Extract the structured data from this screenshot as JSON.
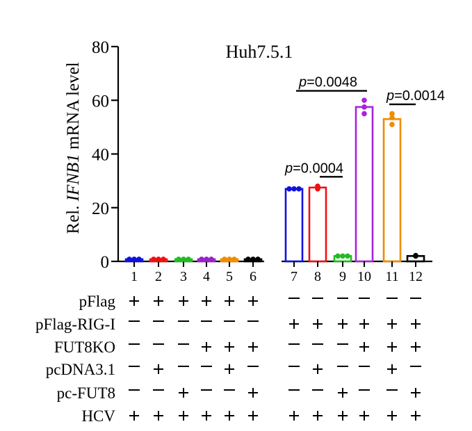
{
  "chart_data": {
    "type": "bar",
    "title": "Huh7.5.1",
    "ylabel_parts": [
      "Rel. ",
      "IFNB1",
      " mRNA  level"
    ],
    "ylim": [
      0,
      80
    ],
    "yticks": [
      0,
      20,
      40,
      60,
      80
    ],
    "categories": [
      "1",
      "2",
      "3",
      "4",
      "5",
      "6",
      "7",
      "8",
      "9",
      "10",
      "11",
      "12"
    ],
    "values": [
      0.8,
      0.8,
      0.8,
      0.8,
      0.8,
      0.8,
      27,
      27.5,
      2,
      57.5,
      53,
      2
    ],
    "points": [
      [
        0.8,
        0.8,
        0.8
      ],
      [
        0.8,
        0.8,
        0.8
      ],
      [
        0.8,
        0.8,
        0.8
      ],
      [
        0.8,
        0.8,
        0.8
      ],
      [
        0.8,
        0.8,
        0.8
      ],
      [
        0.8,
        0.8,
        0.8
      ],
      [
        27,
        27,
        27
      ],
      [
        27,
        28,
        27.5
      ],
      [
        2,
        2,
        2
      ],
      [
        55,
        57.5,
        60
      ],
      [
        51,
        53.5,
        55
      ],
      [
        2,
        2.2,
        2
      ]
    ],
    "colors": [
      "#1111dd",
      "#ee1111",
      "#22bb22",
      "#9922cc",
      "#f08c00",
      "#000000",
      "#1111dd",
      "#ee1111",
      "#22bb22",
      "#aa22dd",
      "#f08c00",
      "#000000"
    ],
    "significance": [
      {
        "from": "8",
        "to": "9",
        "p_prefix": "p",
        "p_value": "=0.0004",
        "y": 31.5
      },
      {
        "from": "7",
        "to": "10",
        "p_prefix": "p",
        "p_value": "=0.0048",
        "y": 63.5
      },
      {
        "from": "11",
        "to": "12",
        "p_prefix": "p",
        "p_value": "=0.0014",
        "y": 58.5
      }
    ],
    "conditions": [
      {
        "label": "pFlag",
        "marks": [
          "+",
          "+",
          "+",
          "+",
          "+",
          "+",
          "–",
          "–",
          "–",
          "–",
          "–",
          "–"
        ]
      },
      {
        "label": "pFlag-RIG-I",
        "marks": [
          "–",
          "–",
          "–",
          "–",
          "–",
          "–",
          "+",
          "+",
          "+",
          "+",
          "+",
          "+"
        ]
      },
      {
        "label": "FUT8KO",
        "marks": [
          "–",
          "–",
          "–",
          "+",
          "+",
          "+",
          "–",
          "–",
          "–",
          "+",
          "+",
          "+"
        ]
      },
      {
        "label": "pcDNA3.1",
        "marks": [
          "–",
          "+",
          "–",
          "–",
          "+",
          "–",
          "–",
          "+",
          "–",
          "–",
          "+",
          "–"
        ]
      },
      {
        "label": "pc-FUT8",
        "marks": [
          "–",
          "–",
          "+",
          "–",
          "–",
          "+",
          "–",
          "–",
          "+",
          "–",
          "–",
          "+"
        ]
      },
      {
        "label": "HCV",
        "marks": [
          "+",
          "+",
          "+",
          "+",
          "+",
          "+",
          "+",
          "+",
          "+",
          "+",
          "+",
          "+"
        ]
      }
    ]
  }
}
